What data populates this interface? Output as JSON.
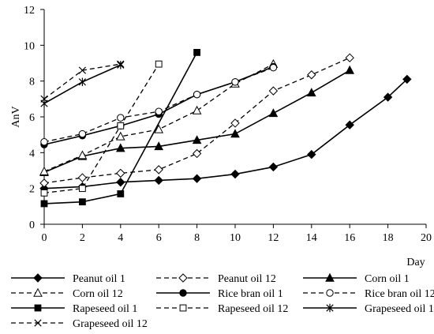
{
  "chart_data": {
    "type": "line",
    "xlabel": "Day",
    "ylabel": "AnV",
    "xlim": [
      0,
      20
    ],
    "ylim": [
      0,
      12
    ],
    "xticks": [
      0,
      2,
      4,
      6,
      8,
      10,
      12,
      14,
      16,
      18,
      20
    ],
    "yticks": [
      0,
      2,
      4,
      6,
      8,
      10,
      12
    ],
    "grid": false,
    "legend_position": "bottom",
    "series": [
      {
        "name": "Peanut oil 1",
        "x": [
          0,
          2,
          4,
          6,
          8,
          10,
          12,
          14,
          16,
          18,
          19
        ],
        "y": [
          2.0,
          2.1,
          2.35,
          2.45,
          2.55,
          2.8,
          3.2,
          3.9,
          5.55,
          7.1,
          8.1
        ],
        "line": "solid",
        "marker": "diamond-filled"
      },
      {
        "name": "Peanut oil 12",
        "x": [
          0,
          2,
          4,
          6,
          8,
          10,
          12,
          14,
          16
        ],
        "y": [
          2.3,
          2.6,
          2.85,
          3.05,
          3.95,
          5.65,
          7.45,
          8.35,
          9.3
        ],
        "line": "dashed",
        "marker": "diamond-open"
      },
      {
        "name": "Corn oil 1",
        "x": [
          0,
          2,
          4,
          6,
          8,
          10,
          12,
          14,
          16
        ],
        "y": [
          2.9,
          3.8,
          4.25,
          4.35,
          4.7,
          5.05,
          6.2,
          7.35,
          8.6
        ],
        "line": "solid",
        "marker": "triangle-filled"
      },
      {
        "name": "Corn oil 12",
        "x": [
          0,
          2,
          4,
          6,
          8,
          10,
          12
        ],
        "y": [
          2.95,
          3.85,
          4.9,
          5.3,
          6.35,
          7.85,
          8.95
        ],
        "line": "dashed",
        "marker": "triangle-open"
      },
      {
        "name": "Rice bran oil 1",
        "x": [
          0,
          2,
          4,
          6,
          8,
          10,
          12
        ],
        "y": [
          4.45,
          4.95,
          5.5,
          6.15,
          7.25,
          7.95,
          8.8
        ],
        "line": "solid",
        "marker": "circle-filled"
      },
      {
        "name": "Rice bran oil 12",
        "x": [
          0,
          2,
          4,
          6,
          8,
          10,
          12
        ],
        "y": [
          4.6,
          5.05,
          5.95,
          6.3,
          7.25,
          7.95,
          8.75
        ],
        "line": "dashed",
        "marker": "circle-open"
      },
      {
        "name": "Rapeseed oil 1",
        "x": [
          0,
          2,
          4,
          8
        ],
        "y": [
          1.15,
          1.25,
          1.7,
          9.6
        ],
        "line": "solid",
        "marker": "square-filled"
      },
      {
        "name": "Rapeseed oil 12",
        "x": [
          0,
          2,
          4,
          6
        ],
        "y": [
          1.75,
          2.0,
          5.5,
          8.95
        ],
        "line": "dashed",
        "marker": "square-open"
      },
      {
        "name": "Grapeseed oil 1",
        "x": [
          0,
          2,
          4
        ],
        "y": [
          6.75,
          7.95,
          8.9
        ],
        "line": "solid",
        "marker": "asterisk"
      },
      {
        "name": "Grapeseed oil 12",
        "x": [
          0,
          2,
          4
        ],
        "y": [
          7.0,
          8.6,
          8.95
        ],
        "line": "dashed",
        "marker": "x"
      }
    ]
  }
}
